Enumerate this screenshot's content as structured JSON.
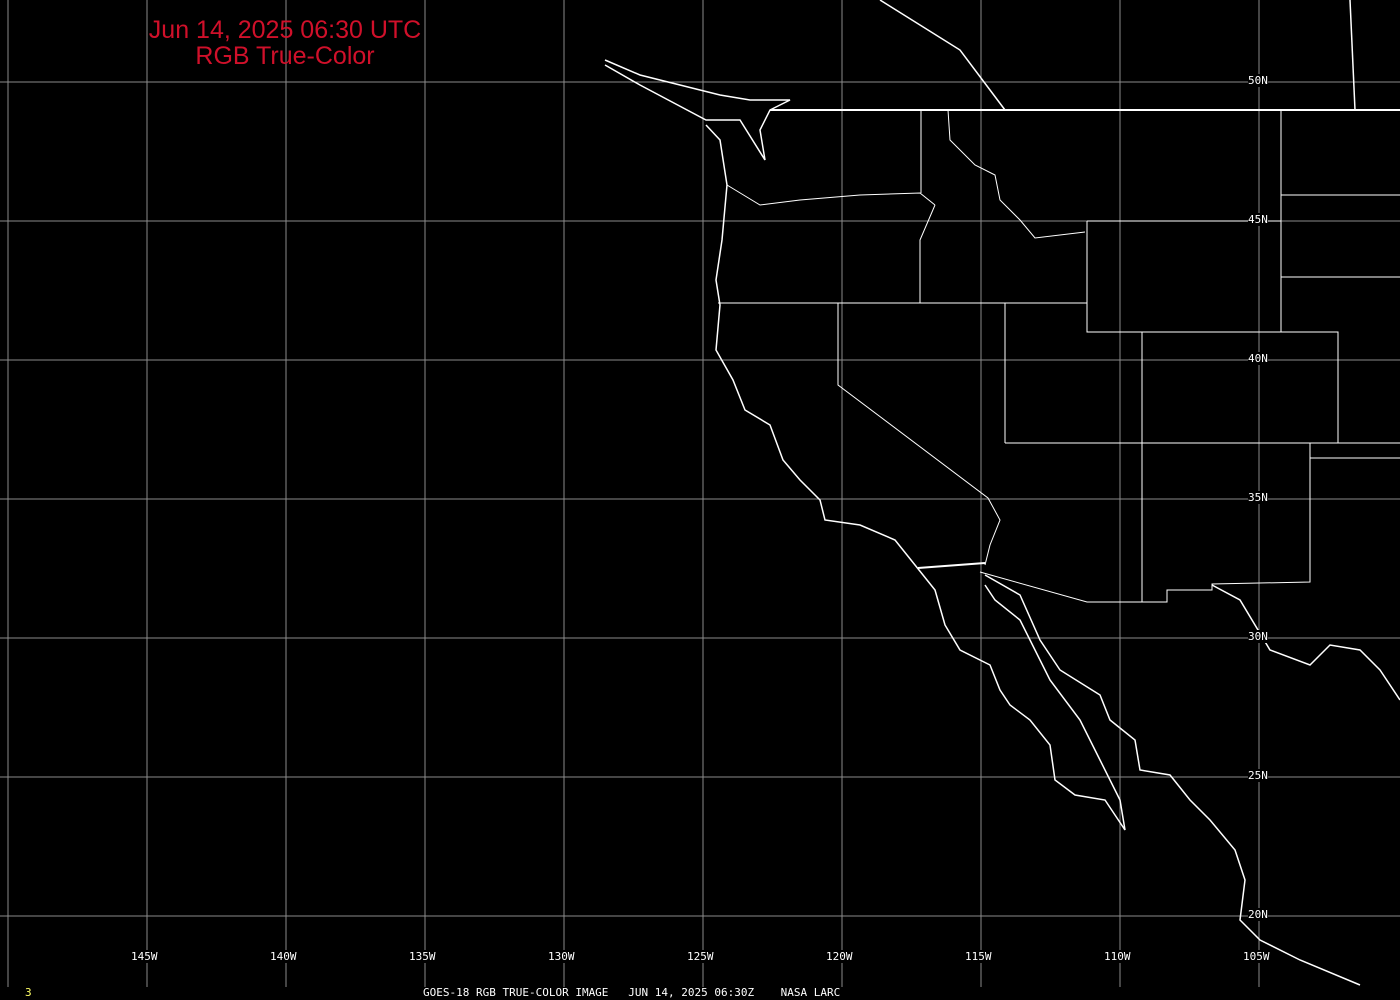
{
  "title": {
    "line1": "Jun 14, 2025 06:30 UTC",
    "line2": "RGB True-Color"
  },
  "grid": {
    "longitudes": [
      "145W",
      "140W",
      "135W",
      "130W",
      "125W",
      "120W",
      "115W",
      "110W",
      "105W"
    ],
    "latitudes": [
      "50N",
      "45N",
      "40N",
      "35N",
      "30N",
      "25N",
      "20N"
    ]
  },
  "footer": {
    "frame_number": "3",
    "caption": "GOES-18 RGB TRUE-COLOR IMAGE   JUN 14, 2025 06:30Z    NASA LARC"
  },
  "colors": {
    "background": "#000000",
    "title": "#d0102a",
    "grid": "#8a8a8a",
    "coast": "#ffffff",
    "frame_number": "#ffff66"
  }
}
